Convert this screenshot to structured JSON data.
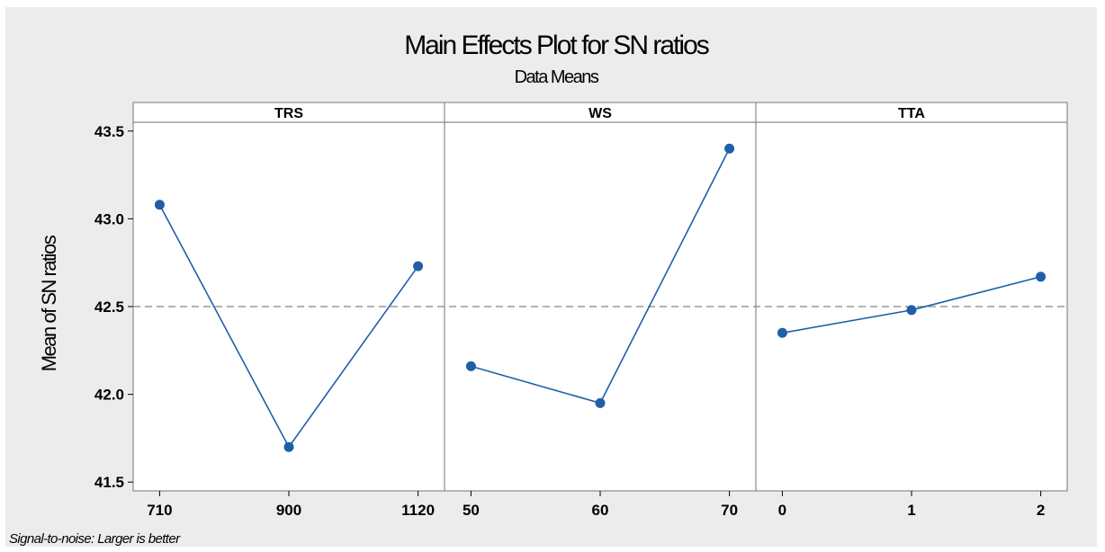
{
  "chart_data": {
    "type": "line",
    "title": "Main Effects Plot for SN ratios",
    "subtitle": "Data Means",
    "ylabel": "Mean of SN ratios",
    "ylim": [
      41.45,
      43.55
    ],
    "yticks": [
      41.5,
      42.0,
      42.5,
      43.0,
      43.5
    ],
    "ytick_labels": [
      "41.5",
      "42.0",
      "42.5",
      "43.0",
      "43.5"
    ],
    "reference_line": 42.5,
    "panels": [
      {
        "label": "TRS",
        "categories": [
          "710",
          "900",
          "1120"
        ],
        "values": [
          43.08,
          41.7,
          42.73
        ]
      },
      {
        "label": "WS",
        "categories": [
          "50",
          "60",
          "70"
        ],
        "values": [
          42.16,
          41.95,
          43.4
        ]
      },
      {
        "label": "TTA",
        "categories": [
          "0",
          "1",
          "2"
        ],
        "values": [
          42.35,
          42.48,
          42.67
        ]
      }
    ],
    "footnote": "Signal-to-noise: Larger is better",
    "colors": {
      "line": "#1f5fa8",
      "marker": "#1f5fa8",
      "reference": "#999999",
      "background": "#ececec",
      "plot": "#ffffff"
    }
  }
}
